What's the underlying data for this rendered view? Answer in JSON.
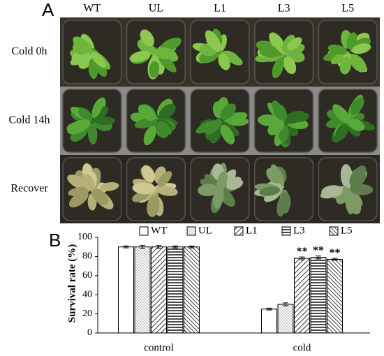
{
  "panel_a": {
    "label": "A",
    "columns": [
      "WT",
      "UL",
      "L1",
      "L3",
      "L5"
    ],
    "rows": [
      "Cold 0h",
      "Cold 14h",
      "Recover"
    ]
  },
  "chart_data": {
    "type": "bar",
    "panel_label": "B",
    "y_label": "Survival rate (%)",
    "categories": [
      "control",
      "cold"
    ],
    "ylim": [
      0,
      100
    ],
    "yticks": [
      0,
      20,
      40,
      60,
      80,
      100
    ],
    "legend": "top",
    "series": [
      {
        "name": "WT",
        "color": "#000000",
        "pattern": "blank",
        "values": [
          90,
          25
        ],
        "errors": [
          1,
          1
        ],
        "significance": [
          null,
          null
        ]
      },
      {
        "name": "UL",
        "color": "#000000",
        "pattern": "dots",
        "values": [
          90,
          30
        ],
        "errors": [
          1.5,
          1.5
        ],
        "significance": [
          null,
          null
        ]
      },
      {
        "name": "L1",
        "color": "#000000",
        "pattern": "diagonal",
        "values": [
          90,
          78
        ],
        "errors": [
          1.5,
          1.5
        ],
        "significance": [
          null,
          "**"
        ]
      },
      {
        "name": "L3",
        "color": "#000000",
        "pattern": "horizontal",
        "values": [
          90,
          79
        ],
        "errors": [
          1,
          1.5
        ],
        "significance": [
          null,
          "**"
        ]
      },
      {
        "name": "L5",
        "color": "#000000",
        "pattern": "dense-diagonal",
        "values": [
          90,
          77
        ],
        "errors": [
          1,
          1
        ],
        "significance": [
          null,
          "**"
        ]
      }
    ]
  }
}
